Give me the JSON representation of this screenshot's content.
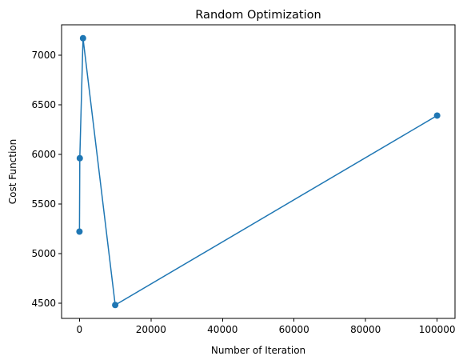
{
  "chart_data": {
    "type": "line",
    "title": "Random Optimization",
    "xlabel": "Number of Iteration",
    "ylabel": "Cost Function",
    "x": [
      10,
      100,
      1000,
      10000,
      100000
    ],
    "series": [
      {
        "values": [
          5220,
          5960,
          7170,
          4480,
          6390
        ]
      }
    ],
    "markers": true,
    "xlim": [
      -4995,
      104995
    ],
    "ylim": [
      4345,
      7305
    ],
    "xticks": [
      0,
      20000,
      40000,
      60000,
      80000,
      100000
    ],
    "xtick_labels": [
      "0",
      "20000",
      "40000",
      "60000",
      "80000",
      "100000"
    ],
    "yticks": [
      4500,
      5000,
      5500,
      6000,
      6500,
      7000
    ],
    "ytick_labels": [
      "4500",
      "5000",
      "5500",
      "6000",
      "6500",
      "7000"
    ],
    "grid": false,
    "color": "#1f77b4"
  }
}
